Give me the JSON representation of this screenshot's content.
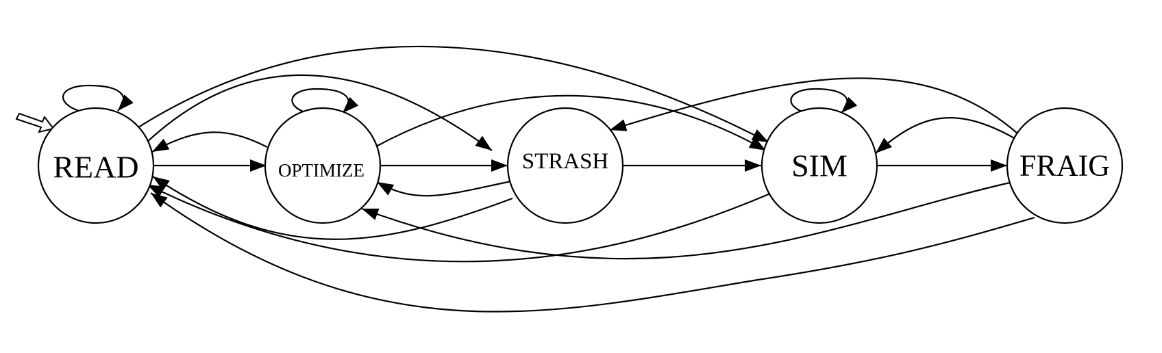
{
  "states": [
    {
      "id": "read",
      "label": "READ"
    },
    {
      "id": "optimize",
      "label": "OPTIMIZE"
    },
    {
      "id": "strash",
      "label": "STRASH"
    },
    {
      "id": "sim",
      "label": "SIM"
    },
    {
      "id": "fraig",
      "label": "FRAIG"
    }
  ],
  "initial_state": "read",
  "transitions": [
    {
      "from": "read",
      "to": "read"
    },
    {
      "from": "read",
      "to": "optimize"
    },
    {
      "from": "read",
      "to": "strash"
    },
    {
      "from": "read",
      "to": "sim"
    },
    {
      "from": "optimize",
      "to": "optimize"
    },
    {
      "from": "optimize",
      "to": "read"
    },
    {
      "from": "optimize",
      "to": "strash"
    },
    {
      "from": "optimize",
      "to": "sim"
    },
    {
      "from": "strash",
      "to": "optimize"
    },
    {
      "from": "strash",
      "to": "read"
    },
    {
      "from": "strash",
      "to": "sim"
    },
    {
      "from": "sim",
      "to": "sim"
    },
    {
      "from": "sim",
      "to": "fraig"
    },
    {
      "from": "sim",
      "to": "read"
    },
    {
      "from": "fraig",
      "to": "sim"
    },
    {
      "from": "fraig",
      "to": "strash"
    },
    {
      "from": "fraig",
      "to": "optimize"
    },
    {
      "from": "fraig",
      "to": "read"
    }
  ],
  "colors": {
    "stroke": "#000000",
    "background": "#ffffff"
  }
}
